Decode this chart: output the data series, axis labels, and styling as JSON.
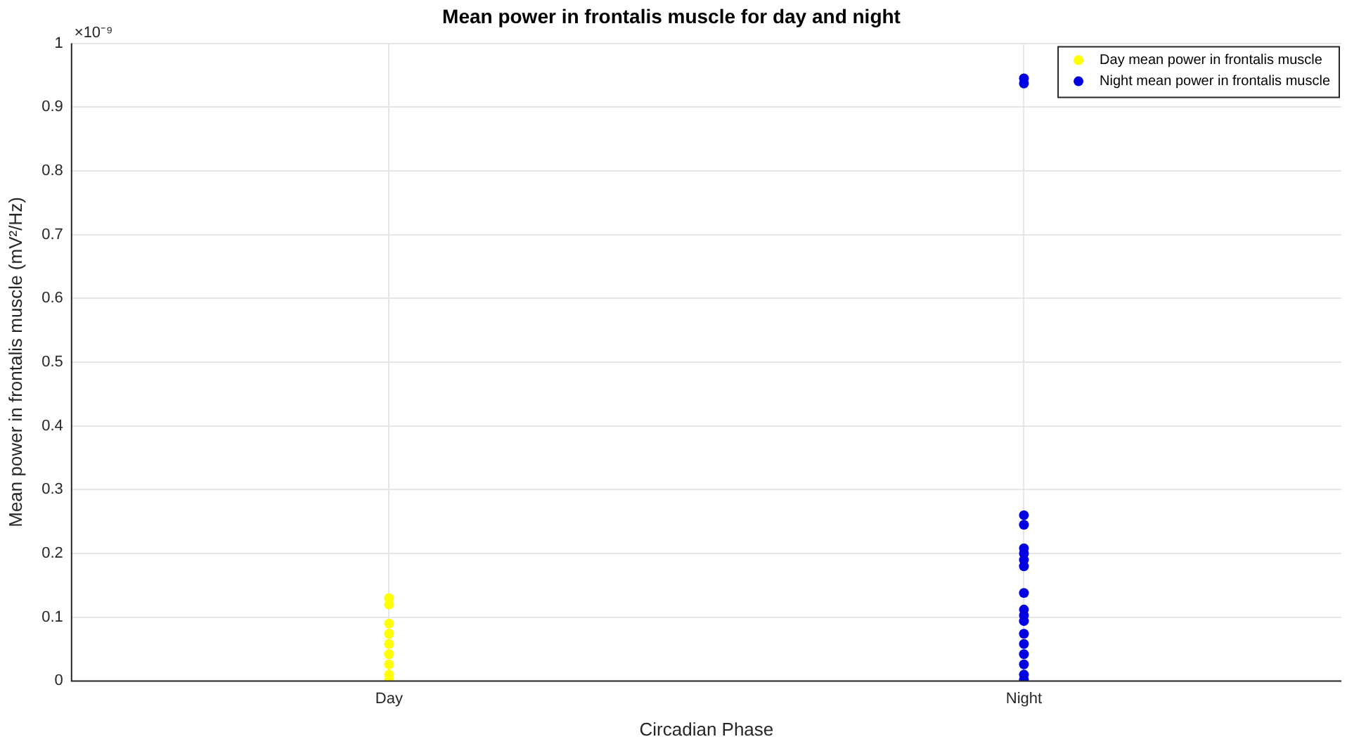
{
  "chart_data": {
    "type": "scatter",
    "title": "Mean power in frontalis muscle for day and night",
    "xlabel": "Circadian Phase",
    "ylabel": "Mean power in frontalis muscle (mV²/Hz)",
    "annotations": [
      "×10⁻⁹"
    ],
    "categories": [
      "Day",
      "Night"
    ],
    "series": [
      {
        "name": "Day mean power in frontalis muscle",
        "color": "#ffff00",
        "x": [
          "Day",
          "Day",
          "Day",
          "Day",
          "Day",
          "Day",
          "Day",
          "Day",
          "Day"
        ],
        "values": [
          0.13,
          0.12,
          0.09,
          0.074,
          0.058,
          0.042,
          0.026,
          0.01,
          0.002
        ]
      },
      {
        "name": "Night mean power in frontalis muscle",
        "color": "#0000e0",
        "x": [
          "Night",
          "Night",
          "Night",
          "Night",
          "Night",
          "Night",
          "Night",
          "Night",
          "Night",
          "Night",
          "Night",
          "Night",
          "Night",
          "Night",
          "Night",
          "Night",
          "Night",
          "Night"
        ],
        "values": [
          0.945,
          0.937,
          0.26,
          0.245,
          0.208,
          0.2,
          0.19,
          0.18,
          0.138,
          0.112,
          0.103,
          0.094,
          0.074,
          0.058,
          0.042,
          0.026,
          0.01,
          0.002
        ]
      }
    ],
    "ylim": [
      0,
      1
    ],
    "yticks": [
      0,
      0.1,
      0.2,
      0.3,
      0.4,
      0.5,
      0.6,
      0.7,
      0.8,
      0.9,
      1
    ],
    "grid": true,
    "legend": "top right",
    "marker": "circle"
  }
}
